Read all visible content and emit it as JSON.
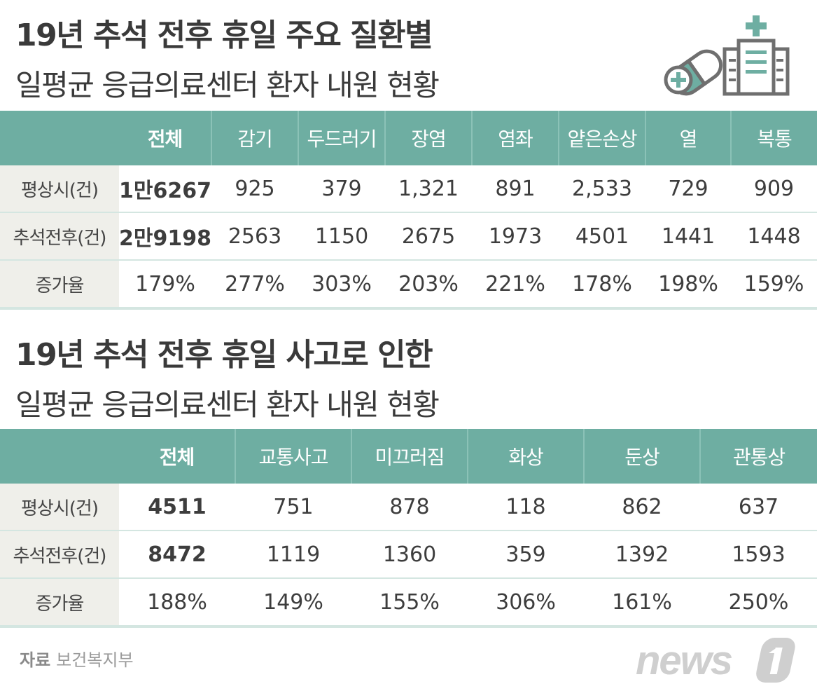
{
  "section1": {
    "title_line1": "19년 추석 전후 휴일 주요 질환별",
    "title_line2": "일평균 응급의료센터 환자 내원 현황",
    "columns": [
      "전체",
      "감기",
      "두드러기",
      "장염",
      "염좌",
      "얕은손상",
      "열",
      "복통"
    ],
    "rows": [
      {
        "label": "평상시(건)",
        "values": [
          "1만6267",
          "925",
          "379",
          "1,321",
          "891",
          "2,533",
          "729",
          "909"
        ]
      },
      {
        "label": "추석전후(건)",
        "values": [
          "2만9198",
          "2563",
          "1150",
          "2675",
          "1973",
          "4501",
          "1441",
          "1448"
        ]
      },
      {
        "label": "증가율",
        "values": [
          "179%",
          "277%",
          "303%",
          "203%",
          "221%",
          "178%",
          "198%",
          "159%"
        ]
      }
    ]
  },
  "section2": {
    "title_line1": "19년 추석 전후 휴일 사고로 인한",
    "title_line2": "일평균 응급의료센터 환자 내원 현황",
    "columns": [
      "전체",
      "교통사고",
      "미끄러짐",
      "화상",
      "둔상",
      "관통상"
    ],
    "rows": [
      {
        "label": "평상시(건)",
        "values": [
          "4511",
          "751",
          "878",
          "118",
          "862",
          "637"
        ]
      },
      {
        "label": "추석전후(건)",
        "values": [
          "8472",
          "1119",
          "1360",
          "359",
          "1392",
          "1593"
        ]
      },
      {
        "label": "증가율",
        "values": [
          "188%",
          "149%",
          "155%",
          "306%",
          "161%",
          "250%"
        ]
      }
    ]
  },
  "source": {
    "label": "자료",
    "value": "보건복지부"
  },
  "logo_text": "news1",
  "colors": {
    "header_bg": "#6eaea2",
    "label_bg": "#efefea",
    "row_line": "#d4e6e1",
    "icon_dark": "#6f6f6f",
    "icon_accent": "#6eaea2"
  },
  "icons": [
    "pill-icon",
    "hospital-icon"
  ]
}
